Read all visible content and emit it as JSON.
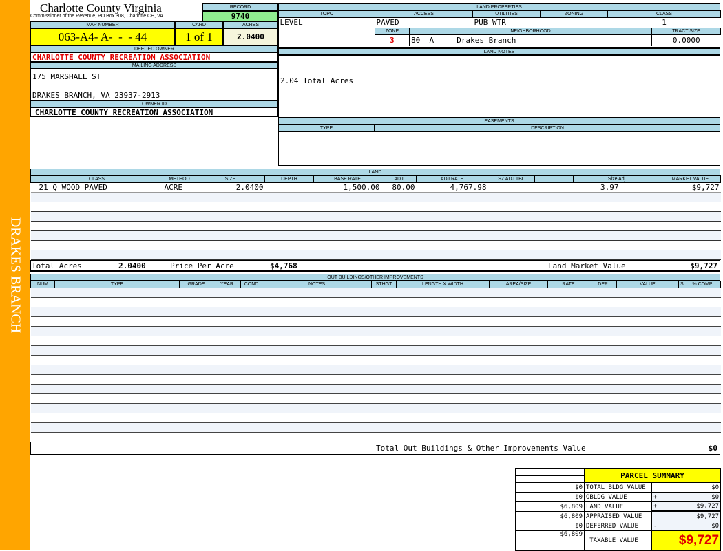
{
  "sidebar": {
    "label": "DRAKES BRANCH",
    "color": "#FFA500"
  },
  "header": {
    "county": "Charlotte County Virginia",
    "office": "Commissioner of the Revenue, PO Box 308, Charlotte CH, VA",
    "record_label": "RECORD",
    "record": "9740",
    "map_label": "MAP NUMBER",
    "map_number": "063-A4- A-  -  - 44",
    "card_label": "CARD",
    "card": "1 of 1",
    "acres_label": "ACRES",
    "acres": "2.0400"
  },
  "owner": {
    "deeded_label": "DEEDED OWNER",
    "deeded": "CHARLOTTE COUNTY RECREATION ASSOCIATION",
    "mailing_label": "MAILING ADDRESS",
    "address1": "175 MARSHALL ST",
    "address2": "DRAKES BRANCH, VA 23937-2913",
    "id_label": "OWNER ID",
    "owner_id": "CHARLOTTE COUNTY RECREATION ASSOCIATION"
  },
  "land_properties": {
    "title": "LAND PROPERTIES",
    "topo_label": "TOPO",
    "access_label": "ACCESS",
    "utilities_label": "UTILITIES",
    "zoning_label": "ZONING",
    "class_label": "CLASS",
    "topo": "LEVEL",
    "access": "PAVED",
    "utilities": "PUB WTR",
    "zoning": "",
    "class": "1",
    "zone_label": "ZONE",
    "neighborhood_label": "NEIGHBORHOOD",
    "tract_label": "TRACT SIZE",
    "zone": "3",
    "neighborhood": "80  A     Drakes Branch",
    "tract_size": "0.0000"
  },
  "land_notes": {
    "title": "LAND NOTES",
    "text": "2.04 Total Acres"
  },
  "easements": {
    "title": "EASEMENTS",
    "type_label": "TYPE",
    "description_label": "DESCRIPTION"
  },
  "land": {
    "title": "LAND",
    "columns": [
      "CLASS",
      "METHOD",
      "SIZE",
      "DEPTH",
      "BASE RATE",
      "ADJ",
      "ADJ RATE",
      "SZ ADJ TBL",
      "",
      "Size Adj",
      "MARKET VALUE"
    ],
    "rows": [
      [
        "21 Q WOOD PAVED",
        "ACRE",
        "2.0400",
        "",
        "1,500.00",
        "80.00",
        "4,767.98",
        "",
        "",
        "3.97",
        "$9,727"
      ]
    ],
    "total_acres_label": "Total Acres",
    "total_acres": "2.0400",
    "ppa_label": "Price Per Acre",
    "ppa": "$4,768",
    "lmv_label": "Land Market Value",
    "lmv": "$9,727"
  },
  "outbuildings": {
    "title": "OUT BUILDINGS/OTHER IMPROVEMENTS",
    "columns": [
      "NUM",
      "TYPE",
      "GRADE",
      "YEAR",
      "COND",
      "NOTES",
      "STHGT",
      "LENGTH X WIDTH",
      "AREA/SIZE",
      "RATE",
      "DEP",
      "VALUE",
      "S",
      "% COMP"
    ],
    "total_label": "Total Out Buildings & Other Improvements Value",
    "total": "$0"
  },
  "summary": {
    "title": "PARCEL SUMMARY",
    "rows": [
      {
        "prior": "$0",
        "label": "TOTAL BLDG VALUE",
        "op": "",
        "value": "$0"
      },
      {
        "prior": "$0",
        "label": "OBLDG VALUE",
        "op": "+",
        "value": "$0"
      },
      {
        "prior": "$6,809",
        "label": "LAND VALUE",
        "op": "+",
        "value": "$9,727"
      },
      {
        "prior": "$6,809",
        "label": "APPRAISED VALUE",
        "op": "",
        "value": "$9,727"
      },
      {
        "prior": "$0",
        "label": "DEFERRED VALUE",
        "op": "-",
        "value": "$0"
      }
    ],
    "taxable_prior": "$6,809",
    "taxable_label": "TAXABLE VALUE",
    "taxable": "$9,727"
  }
}
